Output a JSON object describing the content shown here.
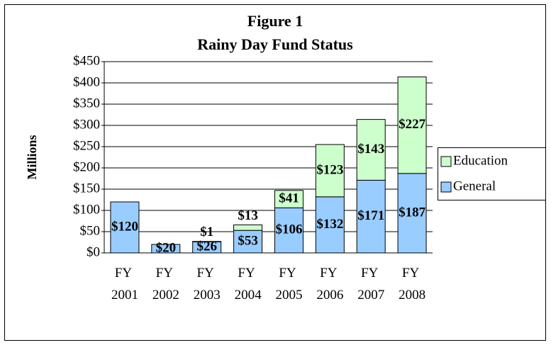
{
  "chart_data": {
    "type": "stacked_bar",
    "title": "Figure 1",
    "subtitle": "Rainy Day Fund Status",
    "y_label": "Millions",
    "categories": [
      "FY 2001",
      "FY 2002",
      "FY 2003",
      "FY 2004",
      "FY 2005",
      "FY 2006",
      "FY 2007",
      "FY 2008"
    ],
    "series": [
      {
        "name": "General",
        "color": "#99ccff",
        "values": [
          120,
          20,
          26,
          53,
          106,
          132,
          171,
          187
        ],
        "value_labels": [
          "$120",
          "$20",
          "$26",
          "$53",
          "$106",
          "$132",
          "$171",
          "$187"
        ]
      },
      {
        "name": "Education",
        "color": "#ccffcc",
        "values": [
          null,
          null,
          1,
          13,
          41,
          123,
          143,
          227
        ],
        "value_labels": [
          null,
          null,
          "$1",
          "$13",
          "$41",
          "$123",
          "$143",
          "$227"
        ]
      }
    ],
    "ylim": [
      0,
      450
    ],
    "yticks": [
      {
        "value": 0,
        "label": "$0"
      },
      {
        "value": 50,
        "label": "$50"
      },
      {
        "value": 100,
        "label": "$100"
      },
      {
        "value": 150,
        "label": "$150"
      },
      {
        "value": 200,
        "label": "$200"
      },
      {
        "value": 250,
        "label": "$250"
      },
      {
        "value": 300,
        "label": "$300"
      },
      {
        "value": 350,
        "label": "$350"
      },
      {
        "value": 400,
        "label": "$400"
      },
      {
        "value": 450,
        "label": "$450"
      }
    ],
    "grid": true,
    "legend": "right"
  }
}
